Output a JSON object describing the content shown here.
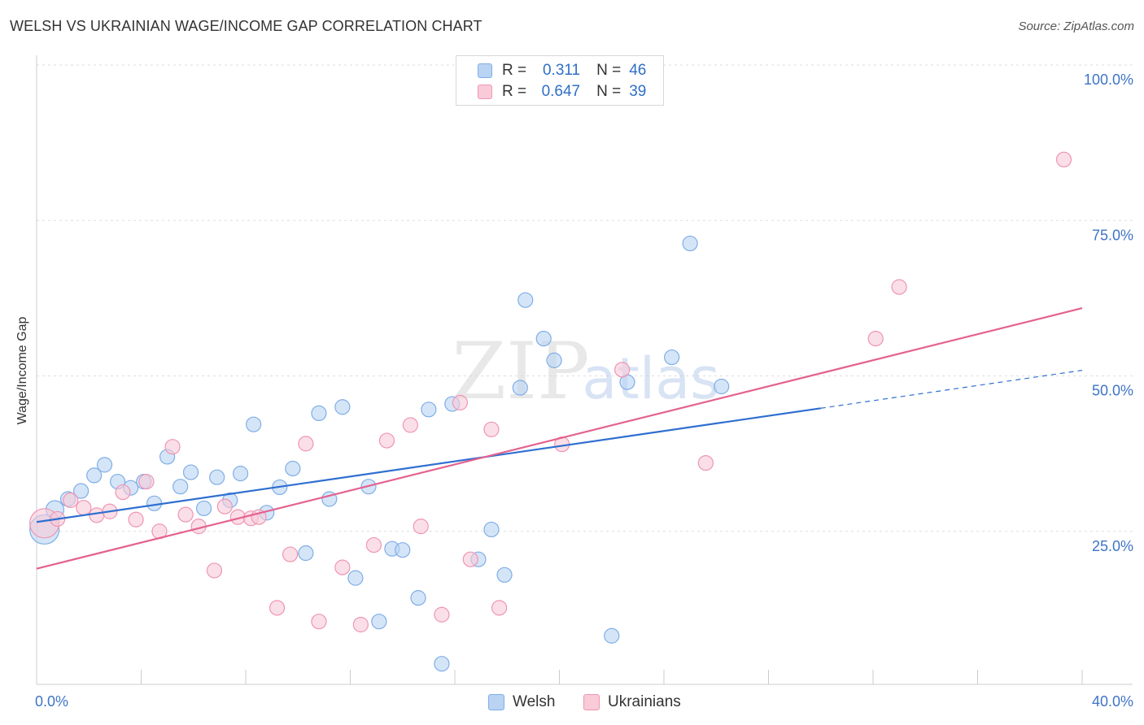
{
  "title": "WELSH VS UKRAINIAN WAGE/INCOME GAP CORRELATION CHART",
  "source": "Source: ZipAtlas.com",
  "watermark": {
    "zip": "ZIP",
    "atlas": "atlas"
  },
  "legend": {
    "r_label": "R =",
    "n_label": "N =",
    "rows": [
      {
        "series": "Welsh",
        "r": "0.311",
        "n": "46",
        "color": "#7faee6"
      },
      {
        "series": "Ukrainians",
        "r": "0.647",
        "n": "39",
        "color": "#ee96b2"
      }
    ]
  },
  "bottom_legend": [
    "Welsh",
    "Ukrainians"
  ],
  "colors": {
    "welsh_fill": "#b9d3f3",
    "welsh_stroke": "#7faee6",
    "welsh_line": "#2f6fd0",
    "ukr_fill": "#f9cad8",
    "ukr_stroke": "#ee96b2",
    "ukr_line": "#e4628f",
    "axis_text": "#3f74c6",
    "grid": "#dedede"
  },
  "chart_data": {
    "type": "scatter",
    "title": "WELSH VS UKRAINIAN WAGE/INCOME GAP CORRELATION CHART",
    "xlabel": "",
    "ylabel": "Wage/Income Gap",
    "xlim": [
      0,
      40
    ],
    "ylim": [
      0,
      100
    ],
    "x_tick_labels": [
      "0.0%",
      "40.0%"
    ],
    "y_ticks": [
      25,
      50,
      75,
      100
    ],
    "y_tick_labels": [
      "25.0%",
      "50.0%",
      "75.0%",
      "100.0%"
    ],
    "grid": true,
    "legend_position": "top-center",
    "series": [
      {
        "name": "Welsh",
        "r": 0.311,
        "n": 46,
        "points": [
          [
            0.3,
            25.3,
            18
          ],
          [
            0.7,
            28.5,
            11
          ],
          [
            1.2,
            30.2,
            9
          ],
          [
            1.7,
            31.5,
            9
          ],
          [
            2.2,
            34,
            9
          ],
          [
            2.6,
            35.7,
            9
          ],
          [
            3.1,
            33,
            9
          ],
          [
            3.6,
            32,
            9
          ],
          [
            4.1,
            33,
            9
          ],
          [
            4.5,
            29.5,
            9
          ],
          [
            5.0,
            37,
            9
          ],
          [
            5.5,
            32.2,
            9
          ],
          [
            5.9,
            34.5,
            9
          ],
          [
            6.4,
            28.7,
            9
          ],
          [
            6.9,
            33.7,
            9
          ],
          [
            7.4,
            30,
            9
          ],
          [
            7.8,
            34.3,
            9
          ],
          [
            8.3,
            42.2,
            9
          ],
          [
            8.8,
            28,
            9
          ],
          [
            9.3,
            32.1,
            9
          ],
          [
            9.8,
            35.1,
            9
          ],
          [
            10.3,
            21.5,
            9
          ],
          [
            10.8,
            44,
            9
          ],
          [
            11.2,
            30.2,
            9
          ],
          [
            11.7,
            45,
            9
          ],
          [
            12.2,
            17.5,
            9
          ],
          [
            12.7,
            32.2,
            9
          ],
          [
            13.1,
            10.5,
            9
          ],
          [
            13.6,
            22.2,
            9
          ],
          [
            14.0,
            22,
            9
          ],
          [
            14.6,
            14.3,
            9
          ],
          [
            15.0,
            44.6,
            9
          ],
          [
            15.5,
            3.7,
            9
          ],
          [
            15.9,
            45.5,
            9
          ],
          [
            16.9,
            20.5,
            9
          ],
          [
            17.4,
            25.3,
            9
          ],
          [
            17.9,
            18,
            9
          ],
          [
            18.5,
            48.1,
            9
          ],
          [
            18.7,
            62.2,
            9
          ],
          [
            19.4,
            56,
            9
          ],
          [
            19.8,
            52.5,
            9
          ],
          [
            22.0,
            8.2,
            9
          ],
          [
            22.6,
            49,
            9
          ],
          [
            24.3,
            53,
            9
          ],
          [
            25.0,
            71.3,
            9
          ],
          [
            26.2,
            48.3,
            9
          ]
        ]
      },
      {
        "name": "Ukrainians",
        "r": 0.647,
        "n": 39,
        "points": [
          [
            0.3,
            26.3,
            18
          ],
          [
            0.8,
            27,
            9
          ],
          [
            1.3,
            30,
            9
          ],
          [
            1.8,
            28.8,
            9
          ],
          [
            2.3,
            27.6,
            9
          ],
          [
            2.8,
            28.2,
            9
          ],
          [
            3.3,
            31.3,
            9
          ],
          [
            3.8,
            26.9,
            9
          ],
          [
            4.2,
            33,
            9
          ],
          [
            4.7,
            25,
            9
          ],
          [
            5.2,
            38.6,
            9
          ],
          [
            5.7,
            27.7,
            9
          ],
          [
            6.2,
            25.8,
            9
          ],
          [
            6.8,
            18.7,
            9
          ],
          [
            7.2,
            29,
            9
          ],
          [
            7.7,
            27.3,
            9
          ],
          [
            8.2,
            27.1,
            9
          ],
          [
            8.5,
            27.3,
            9
          ],
          [
            9.2,
            12.7,
            9
          ],
          [
            9.7,
            21.3,
            9
          ],
          [
            10.3,
            39.1,
            9
          ],
          [
            10.8,
            10.5,
            9
          ],
          [
            11.7,
            19.2,
            9
          ],
          [
            12.4,
            10,
            9
          ],
          [
            12.9,
            22.8,
            9
          ],
          [
            13.4,
            39.6,
            9
          ],
          [
            14.3,
            42.1,
            9
          ],
          [
            14.7,
            25.8,
            9
          ],
          [
            15.5,
            11.6,
            9
          ],
          [
            16.2,
            45.7,
            9
          ],
          [
            16.6,
            20.5,
            9
          ],
          [
            17.4,
            41.4,
            9
          ],
          [
            17.7,
            12.7,
            9
          ],
          [
            20.1,
            39,
            9
          ],
          [
            22.4,
            51,
            9
          ],
          [
            25.6,
            36,
            9
          ],
          [
            32.1,
            56,
            9
          ],
          [
            33.0,
            64.3,
            9
          ],
          [
            39.3,
            84.8,
            9
          ]
        ]
      }
    ],
    "trendlines": [
      {
        "series": "Welsh",
        "x_start": 0,
        "y_start": 26.5,
        "x_solid_end": 30.0,
        "y_solid_end": 44.8,
        "x_end": 40,
        "y_end": 50.9,
        "dashed_after": 30.0
      },
      {
        "series": "Ukrainians",
        "x_start": 0,
        "y_start": 19.0,
        "x_end": 40,
        "y_end": 60.9
      }
    ]
  }
}
